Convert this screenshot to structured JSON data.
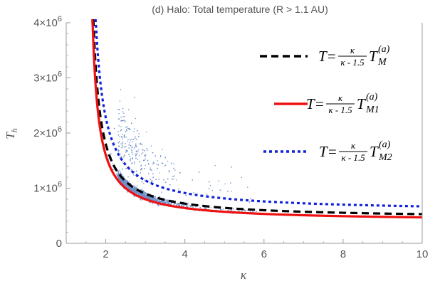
{
  "chart_data": {
    "type": "scatter",
    "title": "(d) Halo: Total temperature (R > 1.1 AU)",
    "xlabel": "κ",
    "ylabel": "T",
    "ylabel_sub": "h",
    "xlim": [
      1,
      10
    ],
    "ylim": [
      0,
      4000000
    ],
    "x_ticks": [
      {
        "value": 2,
        "label": "2"
      },
      {
        "value": 4,
        "label": "4"
      },
      {
        "value": 6,
        "label": "6"
      },
      {
        "value": 8,
        "label": "8"
      },
      {
        "value": 10,
        "label": "10"
      }
    ],
    "y_ticks": [
      {
        "value": 0,
        "mant": "0",
        "exp": ""
      },
      {
        "value": 1000000,
        "mant": "1×10",
        "exp": "6"
      },
      {
        "value": 2000000,
        "mant": "2×10",
        "exp": "6"
      },
      {
        "value": 3000000,
        "mant": "3×10",
        "exp": "6"
      },
      {
        "value": 4000000,
        "mant": "4×10",
        "exp": "6"
      }
    ],
    "grid": false,
    "legend_position": "top-right",
    "series": [
      {
        "name_lhs": "T=",
        "frac_num": "κ",
        "frac_den": "κ - 1.5",
        "sym": "T",
        "sub": "M",
        "sup": "(a)",
        "style": "dashed",
        "color": "#000000",
        "T_scale": 450000
      },
      {
        "name_lhs": "T=",
        "frac_num": "κ",
        "frac_den": "κ - 1.5",
        "sym": "T",
        "sub": "M1",
        "sup": "(a)",
        "style": "solid",
        "color": "#ee1111",
        "T_scale": 400000
      },
      {
        "name_lhs": "T=",
        "frac_num": "κ",
        "frac_den": "κ - 1.5",
        "sym": "T",
        "sub": "M2",
        "sup": "(a)",
        "style": "dotted",
        "color": "#1122dd",
        "T_scale": 570000
      }
    ],
    "scatter_color": "#6f8fc8"
  }
}
